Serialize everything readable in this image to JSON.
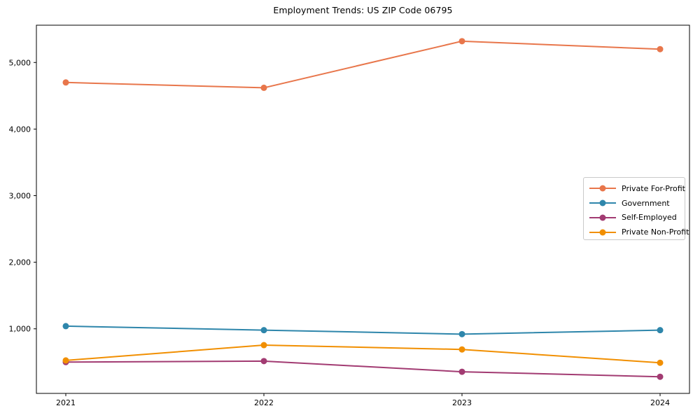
{
  "chart_data": {
    "type": "line",
    "title": "Employment Trends: US ZIP Code 06795",
    "categories": [
      "2021",
      "2022",
      "2023",
      "2024"
    ],
    "series": [
      {
        "name": "Private For-Profit",
        "color": "#E8764B",
        "values": [
          4700,
          4620,
          5320,
          5200
        ]
      },
      {
        "name": "Government",
        "color": "#2E86AB",
        "values": [
          1040,
          980,
          920,
          980
        ]
      },
      {
        "name": "Self-Employed",
        "color": "#A23B72",
        "values": [
          500,
          515,
          355,
          280
        ]
      },
      {
        "name": "Private Non-Profit",
        "color": "#F18F01",
        "values": [
          525,
          755,
          690,
          490
        ]
      }
    ],
    "xlabel": "",
    "ylabel": "",
    "ylim": [
      30,
      5560
    ],
    "yticks": [
      1000,
      2000,
      3000,
      4000,
      5000
    ],
    "ytick_labels": [
      "1,000",
      "2,000",
      "3,000",
      "4,000",
      "5,000"
    ],
    "grid": false,
    "legend_position": "center right",
    "marker": "circle"
  }
}
